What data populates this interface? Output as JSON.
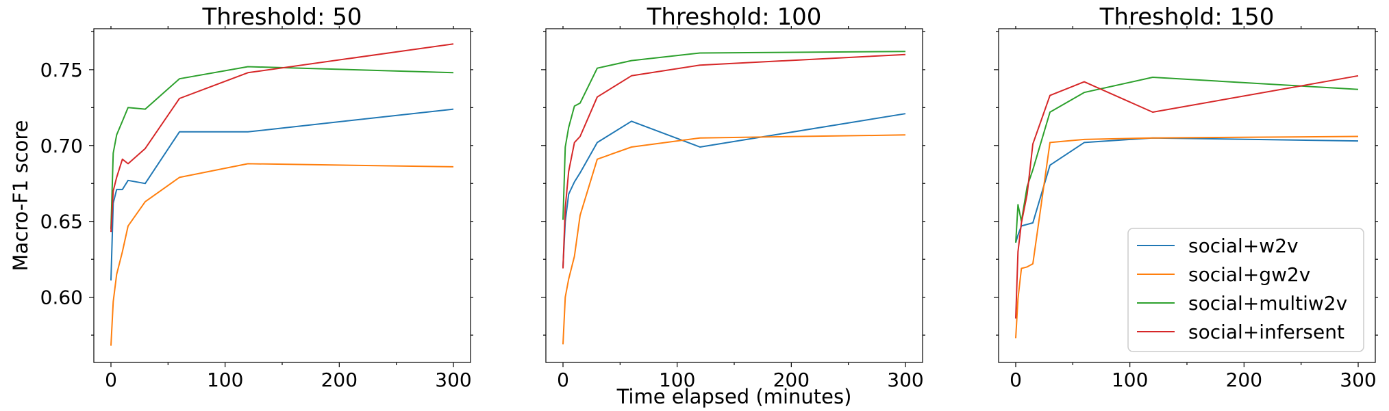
{
  "colors": {
    "social+w2v": "#1f77b4",
    "social+gw2v": "#ff7f0e",
    "social+multiw2v": "#2ca02c",
    "social+infersent": "#d62728"
  },
  "chart_data": {
    "type": "line",
    "xlabel": "Time elapsed (minutes)",
    "ylabel": "Macro-F1 score",
    "xlim": [
      -15,
      315
    ],
    "ylim": [
      0.557,
      0.777
    ],
    "xticks": [
      0,
      100,
      200,
      300
    ],
    "yticks": [
      0.6,
      0.65,
      0.7,
      0.75
    ],
    "ytick_labels": [
      "0.60",
      "0.65",
      "0.70",
      "0.75"
    ],
    "sharey": true,
    "grid": false,
    "legend": {
      "panel": 2,
      "placement": "lower-right",
      "entries": [
        "social+w2v",
        "social+gw2v",
        "social+multiw2v",
        "social+infersent"
      ]
    },
    "panels": [
      {
        "title": "Threshold: 50",
        "series": [
          {
            "name": "social+w2v",
            "x": [
              0,
              2,
              5,
              10,
              15,
              30,
              60,
              120,
              300
            ],
            "y": [
              0.611,
              0.662,
              0.671,
              0.671,
              0.677,
              0.675,
              0.709,
              0.709,
              0.724
            ]
          },
          {
            "name": "social+gw2v",
            "x": [
              0,
              2,
              5,
              10,
              15,
              30,
              60,
              120,
              300
            ],
            "y": [
              0.568,
              0.597,
              0.615,
              0.63,
              0.647,
              0.663,
              0.679,
              0.688,
              0.686
            ]
          },
          {
            "name": "social+multiw2v",
            "x": [
              0,
              2,
              5,
              10,
              15,
              30,
              60,
              120,
              300
            ],
            "y": [
              0.645,
              0.695,
              0.707,
              0.716,
              0.725,
              0.724,
              0.744,
              0.752,
              0.748
            ]
          },
          {
            "name": "social+infersent",
            "x": [
              0,
              2,
              5,
              10,
              15,
              30,
              60,
              120,
              300
            ],
            "y": [
              0.643,
              0.67,
              0.679,
              0.691,
              0.688,
              0.698,
              0.731,
              0.748,
              0.767
            ]
          }
        ]
      },
      {
        "title": "Threshold: 100",
        "series": [
          {
            "name": "social+w2v",
            "x": [
              0,
              2,
              5,
              10,
              15,
              30,
              60,
              120,
              300
            ],
            "y": [
              0.62,
              0.65,
              0.668,
              0.676,
              0.682,
              0.702,
              0.716,
              0.699,
              0.721
            ]
          },
          {
            "name": "social+gw2v",
            "x": [
              0,
              2,
              5,
              10,
              15,
              30,
              60,
              120,
              300
            ],
            "y": [
              0.569,
              0.6,
              0.612,
              0.627,
              0.654,
              0.691,
              0.699,
              0.705,
              0.707
            ]
          },
          {
            "name": "social+multiw2v",
            "x": [
              0,
              2,
              5,
              10,
              15,
              30,
              60,
              120,
              300
            ],
            "y": [
              0.651,
              0.699,
              0.712,
              0.726,
              0.728,
              0.751,
              0.756,
              0.761,
              0.762
            ]
          },
          {
            "name": "social+infersent",
            "x": [
              0,
              2,
              5,
              10,
              15,
              30,
              60,
              120,
              300
            ],
            "y": [
              0.619,
              0.659,
              0.683,
              0.702,
              0.706,
              0.732,
              0.746,
              0.753,
              0.76
            ]
          }
        ]
      },
      {
        "title": "Threshold: 150",
        "series": [
          {
            "name": "social+w2v",
            "x": [
              0,
              2,
              5,
              10,
              15,
              30,
              60,
              120,
              300
            ],
            "y": [
              0.636,
              0.641,
              0.647,
              0.648,
              0.649,
              0.687,
              0.702,
              0.705,
              0.703
            ]
          },
          {
            "name": "social+gw2v",
            "x": [
              0,
              2,
              5,
              10,
              15,
              30,
              60,
              120,
              300
            ],
            "y": [
              0.573,
              0.599,
              0.619,
              0.62,
              0.622,
              0.702,
              0.704,
              0.705,
              0.706
            ]
          },
          {
            "name": "social+multiw2v",
            "x": [
              0,
              2,
              5,
              10,
              15,
              30,
              60,
              120,
              300
            ],
            "y": [
              0.636,
              0.661,
              0.65,
              0.673,
              0.684,
              0.722,
              0.735,
              0.745,
              0.737
            ]
          },
          {
            "name": "social+infersent",
            "x": [
              0,
              2,
              5,
              10,
              15,
              30,
              60,
              120,
              300
            ],
            "y": [
              0.586,
              0.63,
              0.649,
              0.668,
              0.701,
              0.733,
              0.742,
              0.722,
              0.746
            ]
          }
        ]
      }
    ]
  }
}
